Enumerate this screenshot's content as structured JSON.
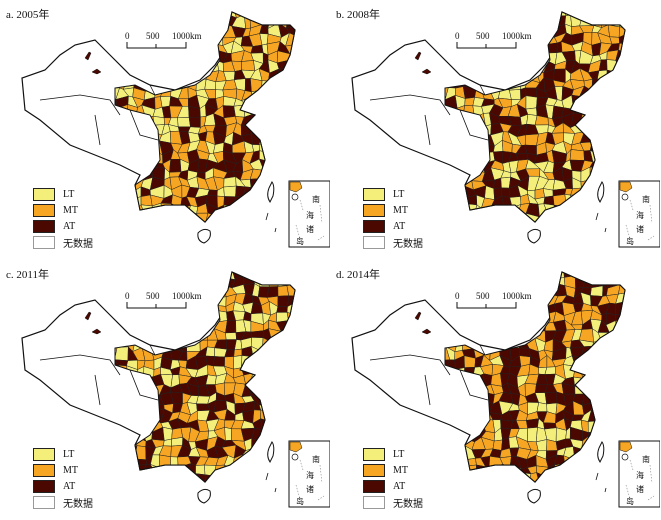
{
  "colors": {
    "LT": "#f4ef7b",
    "MT": "#f6a623",
    "AT": "#4a0800",
    "none": "#ffffff",
    "border": "#111111"
  },
  "panels": [
    {
      "id": "a",
      "title": "a. 2005年"
    },
    {
      "id": "b",
      "title": "b. 2008年"
    },
    {
      "id": "c",
      "title": "c. 2011年"
    },
    {
      "id": "d",
      "title": "d. 2014年"
    }
  ],
  "legend": [
    {
      "key": "LT",
      "label": "LT"
    },
    {
      "key": "MT",
      "label": "MT"
    },
    {
      "key": "AT",
      "label": "AT"
    },
    {
      "key": "none",
      "label": "无数据"
    }
  ],
  "scale_bar": {
    "labels": [
      "0",
      "500",
      "1000km"
    ]
  },
  "inset": {
    "label_chars": [
      "南",
      "海",
      "诸",
      "岛"
    ]
  }
}
